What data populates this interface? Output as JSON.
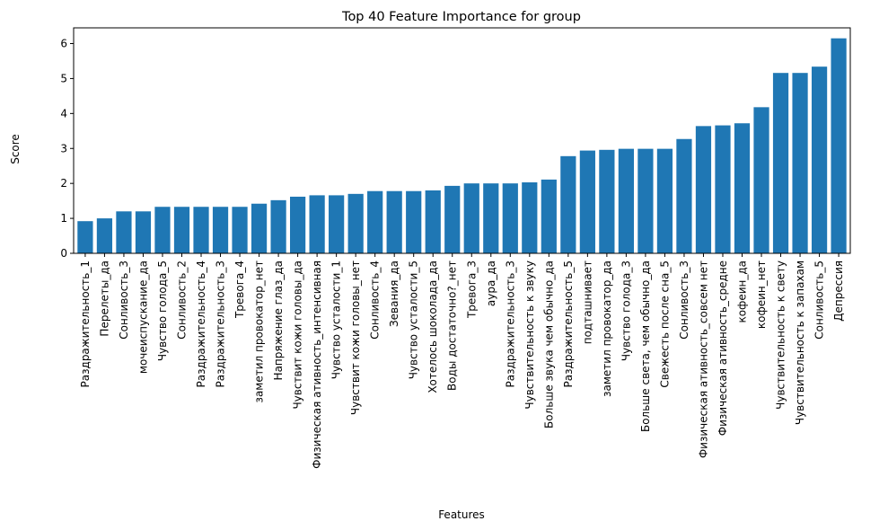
{
  "chart_data": {
    "type": "bar",
    "title": "Top 40 Feature Importance for group",
    "xlabel": "Features",
    "ylabel": "Score",
    "ylim": [
      0,
      6.45
    ],
    "yticks": [
      0,
      1,
      2,
      3,
      4,
      5,
      6
    ],
    "grid": false,
    "bar_color": "#1f77b4",
    "categories": [
      "Раздражительность_1",
      "Перелеты_да",
      "Сонливость_3",
      "мочеиспускание_да",
      "Чувство голода_5",
      "Сонливость_2",
      "Раздражительность_4",
      "Раздражительность_3",
      "Тревога_4",
      "заметил провокатор_нет",
      "Напряжение глаз_да",
      "Чувствит кожи головы_да",
      "Физическая ативность_интенсивная",
      "Чувство усталости_1",
      "Чувствит кожи головы_нет",
      "Сонливость_4",
      "Зевания_да",
      "Чувство усталости_5",
      "Хотелось шоколада_да",
      "Воды достаточно?_нет",
      "Тревога_3",
      "аура_да",
      "Раздражительность_3",
      "Чувствительность к звуку",
      "Больше звука чем обычно_да",
      "Раздражительность_5",
      "подташнивает",
      "заметил провокатор_да",
      "Чувство голода_3",
      "Больше света, чем обычно_да",
      "Свежесть после сна_5",
      "Сонливость_3",
      "Физическая ативность_совсем нет",
      "Физическая ативность_средне",
      "кофеин_да",
      "кофеин_нет",
      "Чувствительность к свету",
      "Чувствительность к запахам",
      "Сонливость_5",
      "Депрессия"
    ],
    "values": [
      0.92,
      1.0,
      1.2,
      1.2,
      1.33,
      1.33,
      1.33,
      1.33,
      1.33,
      1.42,
      1.52,
      1.62,
      1.66,
      1.66,
      1.7,
      1.78,
      1.78,
      1.78,
      1.8,
      1.93,
      2.0,
      2.0,
      2.0,
      2.03,
      2.11,
      2.78,
      2.94,
      2.96,
      2.99,
      2.99,
      2.99,
      3.27,
      3.64,
      3.66,
      3.72,
      4.18,
      5.16,
      5.16,
      5.34,
      6.15
    ]
  }
}
